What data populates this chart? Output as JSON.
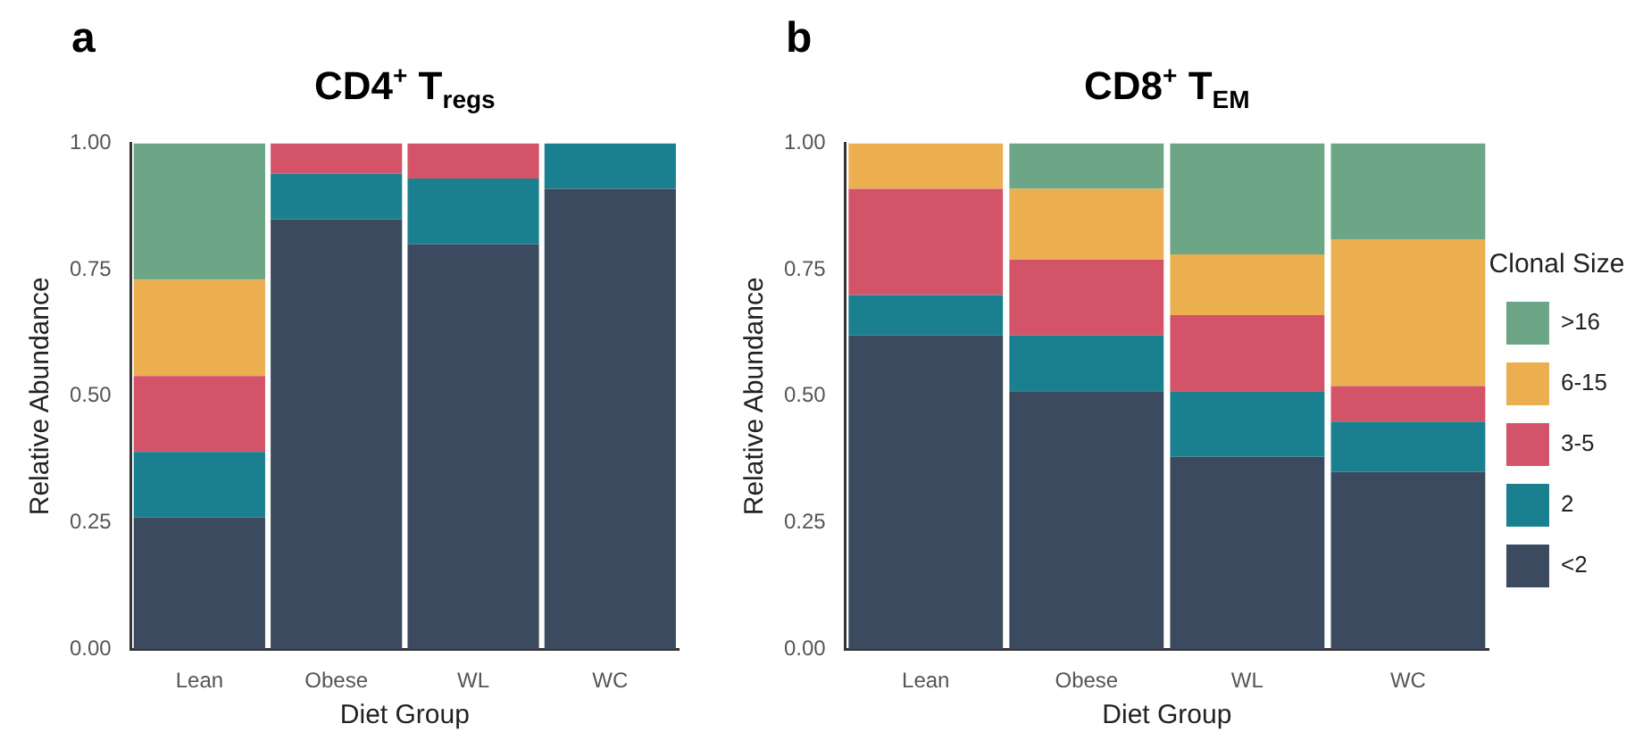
{
  "chart_data": [
    {
      "type": "bar",
      "title": "CD4$^{+}$ T$_{regs}$",
      "xlabel": "Diet Group",
      "ylabel": "Relative Abundance",
      "annotations": [
        "a"
      ],
      "categories": [
        "Lean",
        "Obese",
        "WL",
        "WC"
      ],
      "stacked": true,
      "ylim": [
        0,
        1
      ],
      "yticks": [
        {
          "value": 0,
          "label": "0.00"
        },
        {
          "value": 0.25,
          "label": "0.25"
        },
        {
          "value": 0.5,
          "label": "0.50"
        },
        {
          "value": 0.75,
          "label": "0.75"
        },
        {
          "value": 1,
          "label": "1.00"
        }
      ],
      "grid": false,
      "legend": false,
      "series": [
        {
          "color": "#3b4a5e",
          "values": [
            0.26,
            0.85,
            0.8,
            0.91
          ]
        },
        {
          "color": "#1a8090",
          "values": [
            0.13,
            0.09,
            0.13,
            0.09
          ]
        },
        {
          "color": "#d35468",
          "values": [
            0.15,
            0.06,
            0.07,
            0
          ]
        },
        {
          "color": "#ecaf50",
          "values": [
            0.19,
            0,
            0,
            0
          ]
        },
        {
          "color": "#6da587",
          "values": [
            0.27,
            0,
            0,
            0
          ]
        }
      ]
    },
    {
      "type": "bar",
      "title": "CD8$^{+}$ T$_{EM}$",
      "xlabel": "Diet Group",
      "ylabel": "Relative Abundance",
      "annotations": [
        "b"
      ],
      "legend_title": "Clonal Size",
      "categories": [
        "Lean",
        "Obese",
        "WL",
        "WC"
      ],
      "stacked": true,
      "ylim": [
        0,
        1
      ],
      "yticks": [
        {
          "value": 0,
          "label": "0.00"
        },
        {
          "value": 0.25,
          "label": "0.25"
        },
        {
          "value": 0.5,
          "label": "0.50"
        },
        {
          "value": 0.75,
          "label": "0.75"
        },
        {
          "value": 1,
          "label": "1.00"
        }
      ],
      "grid": false,
      "legend": "right",
      "series": [
        {
          "name": "<2",
          "color": "#3b4a5e",
          "values": [
            0.62,
            0.51,
            0.38,
            0.35
          ]
        },
        {
          "name": "2",
          "color": "#1a8090",
          "values": [
            0.08,
            0.11,
            0.13,
            0.1
          ]
        },
        {
          "name": "3-5",
          "color": "#d35468",
          "values": [
            0.21,
            0.15,
            0.15,
            0.07
          ]
        },
        {
          "name": "6-15",
          "color": "#ecaf50",
          "values": [
            0.09,
            0.14,
            0.12,
            0.29
          ]
        },
        {
          "name": ">16",
          "color": "#6da587",
          "values": [
            0,
            0.09,
            0.22,
            0.19
          ]
        }
      ]
    }
  ]
}
